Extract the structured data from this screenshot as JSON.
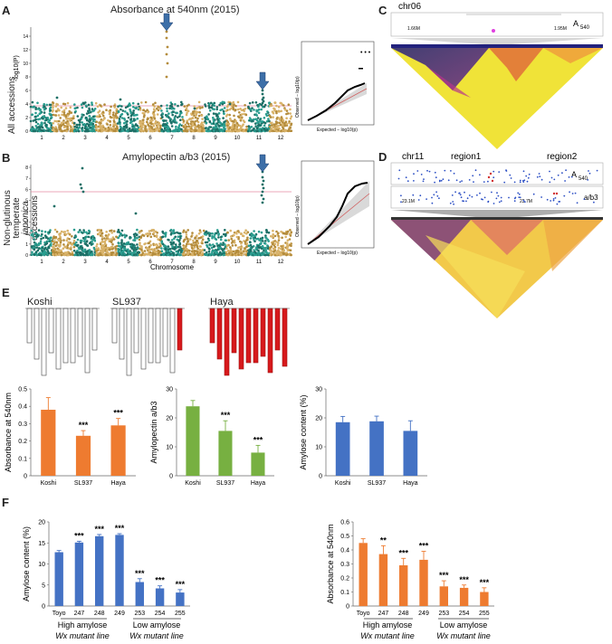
{
  "panels": {
    "A": {
      "label": "A",
      "title": "Absorbance at 540nm (2015)",
      "ylabel_side": "All accessions",
      "ylabel": "-log10(P)"
    },
    "B": {
      "label": "B",
      "title": "Amylopectin a/b3 (2015)",
      "ylabel_side_1": "Non-glutinous",
      "ylabel_side_2": "temperate",
      "ylabel_side_3": "japonica",
      "ylabel_side_4": "accessions",
      "xlabel": "Chromosome"
    },
    "C": {
      "label": "C",
      "chrom": "chr06",
      "trait": "A",
      "trait_sub": "540",
      "left_pos": "1.66M",
      "right_pos": "1.95M"
    },
    "D": {
      "label": "D",
      "chrom": "chr11",
      "region1": "region1",
      "region2": "region2",
      "trait1": "A",
      "trait1_sub": "540",
      "trait2": "a/b3",
      "left_pos": "23.1M",
      "right_pos": "23.7M"
    },
    "E": {
      "label": "E",
      "varieties": [
        "Koshi",
        "SL937",
        "Haya"
      ]
    },
    "F": {
      "label": "F",
      "group_high_1": "High amylose",
      "group_high_2": "Wx mutant line",
      "group_low_1": "Low amylose",
      "group_low_2": "Wx mutant line"
    }
  },
  "qq": {
    "xlabel": "Expected − log10(p)",
    "ylabel": "Observed − log10(p)"
  },
  "chromosomes": [
    "1",
    "2",
    "3",
    "4",
    "5",
    "6",
    "7",
    "8",
    "9",
    "10",
    "11",
    "12"
  ],
  "yticks_A": [
    "0",
    "2",
    "4",
    "6",
    "8",
    "10",
    "12",
    "14"
  ],
  "yticks_B": [
    "0",
    "1",
    "2",
    "3",
    "4",
    "5",
    "6",
    "7",
    "8"
  ],
  "chart_data": [
    {
      "type": "bar",
      "id": "E1",
      "ylabel": "Absorbance at 540nm",
      "categories": [
        "Koshi",
        "SL937",
        "Haya"
      ],
      "values": [
        0.38,
        0.23,
        0.29
      ],
      "errors": [
        0.07,
        0.03,
        0.04
      ],
      "sig": [
        "",
        "***",
        "***"
      ],
      "ylim": [
        0,
        0.5
      ],
      "yticks": [
        "0",
        "0.1",
        "0.2",
        "0.3",
        "0.4",
        "0.5"
      ],
      "color": "#ee7b30"
    },
    {
      "type": "bar",
      "id": "E2",
      "ylabel": "Amylopectin a/b3",
      "categories": [
        "Koshi",
        "SL937",
        "Haya"
      ],
      "values": [
        24,
        15.5,
        8
      ],
      "errors": [
        2,
        3.5,
        2.5
      ],
      "sig": [
        "",
        "***",
        "***"
      ],
      "ylim": [
        0,
        30
      ],
      "yticks": [
        "0",
        "10",
        "20",
        "30"
      ],
      "color": "#77b041"
    },
    {
      "type": "bar",
      "id": "E3",
      "ylabel": "Amylose content (%)",
      "categories": [
        "Koshi",
        "SL937",
        "Haya"
      ],
      "values": [
        18.5,
        18.8,
        15.5
      ],
      "errors": [
        2,
        1.8,
        3.5
      ],
      "sig": [
        "",
        "",
        ""
      ],
      "ylim": [
        0,
        30
      ],
      "yticks": [
        "0",
        "10",
        "20",
        "30"
      ],
      "color": "#4472c4"
    },
    {
      "type": "bar",
      "id": "F1",
      "ylabel": "Amylose content (%)",
      "categories": [
        "Toyo",
        "247",
        "248",
        "249",
        "253",
        "254",
        "255"
      ],
      "values": [
        12.8,
        15.1,
        16.6,
        16.9,
        5.7,
        4.2,
        3.2
      ],
      "errors": [
        0.4,
        0.3,
        0.4,
        0.3,
        0.8,
        0.6,
        0.7
      ],
      "sig": [
        "",
        "***",
        "***",
        "***",
        "***",
        "***",
        "***"
      ],
      "ylim": [
        0,
        20
      ],
      "yticks": [
        "0",
        "5",
        "10",
        "15",
        "20"
      ],
      "color": "#4472c4"
    },
    {
      "type": "bar",
      "id": "F2",
      "ylabel": "Absorbance at 540nm",
      "categories": [
        "Toyo",
        "247",
        "248",
        "249",
        "253",
        "254",
        "255"
      ],
      "values": [
        0.45,
        0.37,
        0.29,
        0.33,
        0.14,
        0.13,
        0.1
      ],
      "errors": [
        0.03,
        0.06,
        0.05,
        0.06,
        0.04,
        0.02,
        0.03
      ],
      "sig": [
        "",
        "**",
        "***",
        "***",
        "***",
        "***",
        "***"
      ],
      "ylim": [
        0,
        0.6
      ],
      "yticks": [
        "0",
        "0.1",
        "0.2",
        "0.3",
        "0.4",
        "0.5",
        "0.6"
      ],
      "color": "#ee7b30"
    }
  ]
}
